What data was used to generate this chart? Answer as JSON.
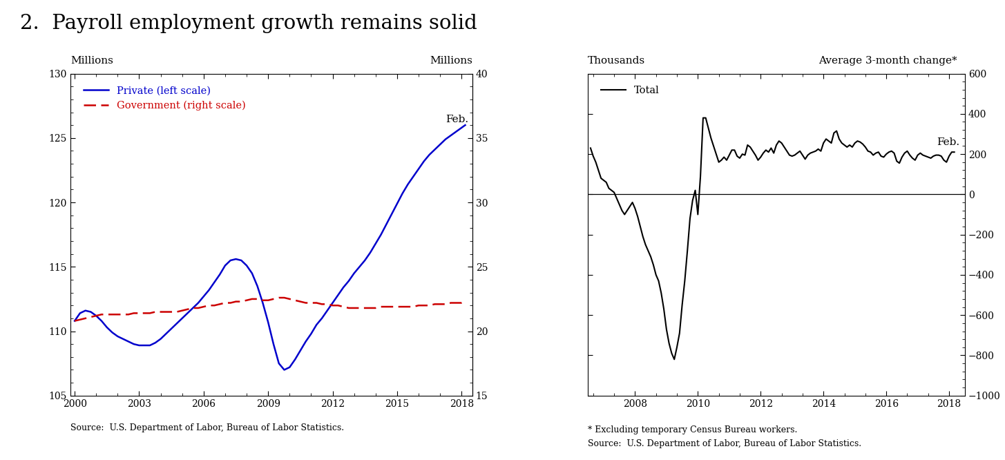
{
  "title": "2.  Payroll employment growth remains solid",
  "title_fontsize": 21,
  "left_chart": {
    "ylabel_left": "Millions",
    "ylabel_right": "Millions",
    "ylim_left": [
      105,
      130
    ],
    "ylim_right": [
      15,
      40
    ],
    "yticks_left": [
      105,
      110,
      115,
      120,
      125,
      130
    ],
    "yticks_right": [
      15,
      20,
      25,
      30,
      35,
      40
    ],
    "xlim": [
      1999.8,
      2018.5
    ],
    "xticks": [
      2000,
      2003,
      2006,
      2009,
      2012,
      2015,
      2018
    ],
    "source": "Source:  U.S. Department of Labor, Bureau of Labor Statistics.",
    "legend_private": "Private (left scale)",
    "legend_govt": "Government (right scale)",
    "feb_label": "Feb.",
    "private_color": "#0000cc",
    "govt_color": "#cc0000",
    "private_x": [
      2000.0,
      2000.25,
      2000.5,
      2000.75,
      2001.0,
      2001.25,
      2001.5,
      2001.75,
      2002.0,
      2002.25,
      2002.5,
      2002.75,
      2003.0,
      2003.25,
      2003.5,
      2003.75,
      2004.0,
      2004.25,
      2004.5,
      2004.75,
      2005.0,
      2005.25,
      2005.5,
      2005.75,
      2006.0,
      2006.25,
      2006.5,
      2006.75,
      2007.0,
      2007.25,
      2007.5,
      2007.75,
      2008.0,
      2008.25,
      2008.5,
      2008.75,
      2009.0,
      2009.25,
      2009.5,
      2009.75,
      2010.0,
      2010.25,
      2010.5,
      2010.75,
      2011.0,
      2011.25,
      2011.5,
      2011.75,
      2012.0,
      2012.25,
      2012.5,
      2012.75,
      2013.0,
      2013.25,
      2013.5,
      2013.75,
      2014.0,
      2014.25,
      2014.5,
      2014.75,
      2015.0,
      2015.25,
      2015.5,
      2015.75,
      2016.0,
      2016.25,
      2016.5,
      2016.75,
      2017.0,
      2017.25,
      2017.5,
      2017.75,
      2018.0,
      2018.167
    ],
    "private_y": [
      110.8,
      111.4,
      111.6,
      111.5,
      111.2,
      110.8,
      110.3,
      109.9,
      109.6,
      109.4,
      109.2,
      109.0,
      108.9,
      108.9,
      108.9,
      109.1,
      109.4,
      109.8,
      110.2,
      110.6,
      111.0,
      111.4,
      111.8,
      112.2,
      112.7,
      113.2,
      113.8,
      114.4,
      115.1,
      115.5,
      115.6,
      115.5,
      115.1,
      114.5,
      113.5,
      112.2,
      110.7,
      109.0,
      107.5,
      107.0,
      107.2,
      107.8,
      108.5,
      109.2,
      109.8,
      110.5,
      111.0,
      111.6,
      112.2,
      112.8,
      113.4,
      113.9,
      114.5,
      115.0,
      115.5,
      116.1,
      116.8,
      117.5,
      118.3,
      119.1,
      119.9,
      120.7,
      121.4,
      122.0,
      122.6,
      123.2,
      123.7,
      124.1,
      124.5,
      124.9,
      125.2,
      125.5,
      125.8,
      126.0
    ],
    "govt_x": [
      2000.0,
      2000.25,
      2000.5,
      2000.75,
      2001.0,
      2001.25,
      2001.5,
      2001.75,
      2002.0,
      2002.25,
      2002.5,
      2002.75,
      2003.0,
      2003.25,
      2003.5,
      2003.75,
      2004.0,
      2004.25,
      2004.5,
      2004.75,
      2005.0,
      2005.25,
      2005.5,
      2005.75,
      2006.0,
      2006.25,
      2006.5,
      2006.75,
      2007.0,
      2007.25,
      2007.5,
      2007.75,
      2008.0,
      2008.25,
      2008.5,
      2008.75,
      2009.0,
      2009.25,
      2009.5,
      2009.75,
      2010.0,
      2010.25,
      2010.5,
      2010.75,
      2011.0,
      2011.25,
      2011.5,
      2011.75,
      2012.0,
      2012.25,
      2012.5,
      2012.75,
      2013.0,
      2013.25,
      2013.5,
      2013.75,
      2014.0,
      2014.25,
      2014.5,
      2014.75,
      2015.0,
      2015.25,
      2015.5,
      2015.75,
      2016.0,
      2016.25,
      2016.5,
      2016.75,
      2017.0,
      2017.25,
      2017.5,
      2017.75,
      2018.0,
      2018.167
    ],
    "govt_y": [
      20.8,
      20.9,
      21.0,
      21.1,
      21.2,
      21.3,
      21.3,
      21.3,
      21.3,
      21.3,
      21.3,
      21.4,
      21.4,
      21.4,
      21.4,
      21.5,
      21.5,
      21.5,
      21.5,
      21.5,
      21.6,
      21.7,
      21.8,
      21.8,
      21.9,
      22.0,
      22.0,
      22.1,
      22.2,
      22.2,
      22.3,
      22.3,
      22.4,
      22.5,
      22.5,
      22.4,
      22.4,
      22.5,
      22.6,
      22.6,
      22.5,
      22.4,
      22.3,
      22.2,
      22.2,
      22.2,
      22.1,
      22.1,
      22.0,
      22.0,
      21.9,
      21.8,
      21.8,
      21.8,
      21.8,
      21.8,
      21.8,
      21.9,
      21.9,
      21.9,
      21.9,
      21.9,
      21.9,
      21.9,
      22.0,
      22.0,
      22.0,
      22.1,
      22.1,
      22.1,
      22.2,
      22.2,
      22.2,
      22.3
    ]
  },
  "right_chart": {
    "ylabel_left": "Thousands",
    "ylabel_right": "Average 3-month change*",
    "ylim": [
      -1000,
      600
    ],
    "yticks": [
      -1000,
      -800,
      -600,
      -400,
      -200,
      0,
      200,
      400,
      600
    ],
    "xlim": [
      2006.5,
      2018.5
    ],
    "xticks": [
      2008,
      2010,
      2012,
      2014,
      2016,
      2018
    ],
    "source1": "* Excluding temporary Census Bureau workers.",
    "source2": "Source:  U.S. Department of Labor, Bureau of Labor Statistics.",
    "legend_total": "Total",
    "feb_label": "Feb.",
    "total_color": "#000000",
    "total_x": [
      2006.583,
      2006.667,
      2006.75,
      2006.833,
      2006.917,
      2007.0,
      2007.083,
      2007.167,
      2007.25,
      2007.333,
      2007.417,
      2007.5,
      2007.583,
      2007.667,
      2007.75,
      2007.833,
      2007.917,
      2008.0,
      2008.083,
      2008.167,
      2008.25,
      2008.333,
      2008.417,
      2008.5,
      2008.583,
      2008.667,
      2008.75,
      2008.833,
      2008.917,
      2009.0,
      2009.083,
      2009.167,
      2009.25,
      2009.333,
      2009.417,
      2009.5,
      2009.583,
      2009.667,
      2009.75,
      2009.833,
      2009.917,
      2010.0,
      2010.083,
      2010.167,
      2010.25,
      2010.333,
      2010.417,
      2010.5,
      2010.583,
      2010.667,
      2010.75,
      2010.833,
      2010.917,
      2011.0,
      2011.083,
      2011.167,
      2011.25,
      2011.333,
      2011.417,
      2011.5,
      2011.583,
      2011.667,
      2011.75,
      2011.833,
      2011.917,
      2012.0,
      2012.083,
      2012.167,
      2012.25,
      2012.333,
      2012.417,
      2012.5,
      2012.583,
      2012.667,
      2012.75,
      2012.833,
      2012.917,
      2013.0,
      2013.083,
      2013.167,
      2013.25,
      2013.333,
      2013.417,
      2013.5,
      2013.583,
      2013.667,
      2013.75,
      2013.833,
      2013.917,
      2014.0,
      2014.083,
      2014.167,
      2014.25,
      2014.333,
      2014.417,
      2014.5,
      2014.583,
      2014.667,
      2014.75,
      2014.833,
      2014.917,
      2015.0,
      2015.083,
      2015.167,
      2015.25,
      2015.333,
      2015.417,
      2015.5,
      2015.583,
      2015.667,
      2015.75,
      2015.833,
      2015.917,
      2016.0,
      2016.083,
      2016.167,
      2016.25,
      2016.333,
      2016.417,
      2016.5,
      2016.583,
      2016.667,
      2016.75,
      2016.833,
      2016.917,
      2017.0,
      2017.083,
      2017.167,
      2017.25,
      2017.333,
      2017.417,
      2017.5,
      2017.583,
      2017.667,
      2017.75,
      2017.833,
      2017.917,
      2018.0,
      2018.083,
      2018.167
    ],
    "total_y": [
      230,
      190,
      160,
      120,
      80,
      70,
      60,
      30,
      20,
      10,
      -20,
      -50,
      -80,
      -100,
      -80,
      -60,
      -40,
      -70,
      -110,
      -160,
      -210,
      -250,
      -280,
      -310,
      -350,
      -400,
      -430,
      -490,
      -570,
      -670,
      -740,
      -790,
      -820,
      -760,
      -690,
      -550,
      -430,
      -280,
      -120,
      -30,
      20,
      -100,
      90,
      380,
      380,
      330,
      280,
      240,
      200,
      160,
      170,
      185,
      170,
      195,
      220,
      220,
      190,
      180,
      200,
      195,
      245,
      235,
      215,
      195,
      170,
      185,
      205,
      220,
      210,
      230,
      205,
      245,
      265,
      255,
      235,
      215,
      195,
      190,
      195,
      205,
      215,
      195,
      175,
      195,
      205,
      210,
      215,
      225,
      215,
      255,
      275,
      265,
      255,
      305,
      315,
      275,
      255,
      245,
      235,
      245,
      235,
      255,
      265,
      260,
      250,
      235,
      215,
      210,
      195,
      205,
      210,
      190,
      185,
      200,
      210,
      215,
      205,
      165,
      155,
      185,
      205,
      215,
      195,
      180,
      170,
      195,
      205,
      195,
      190,
      185,
      180,
      190,
      195,
      195,
      190,
      170,
      160,
      190,
      210,
      210
    ]
  }
}
